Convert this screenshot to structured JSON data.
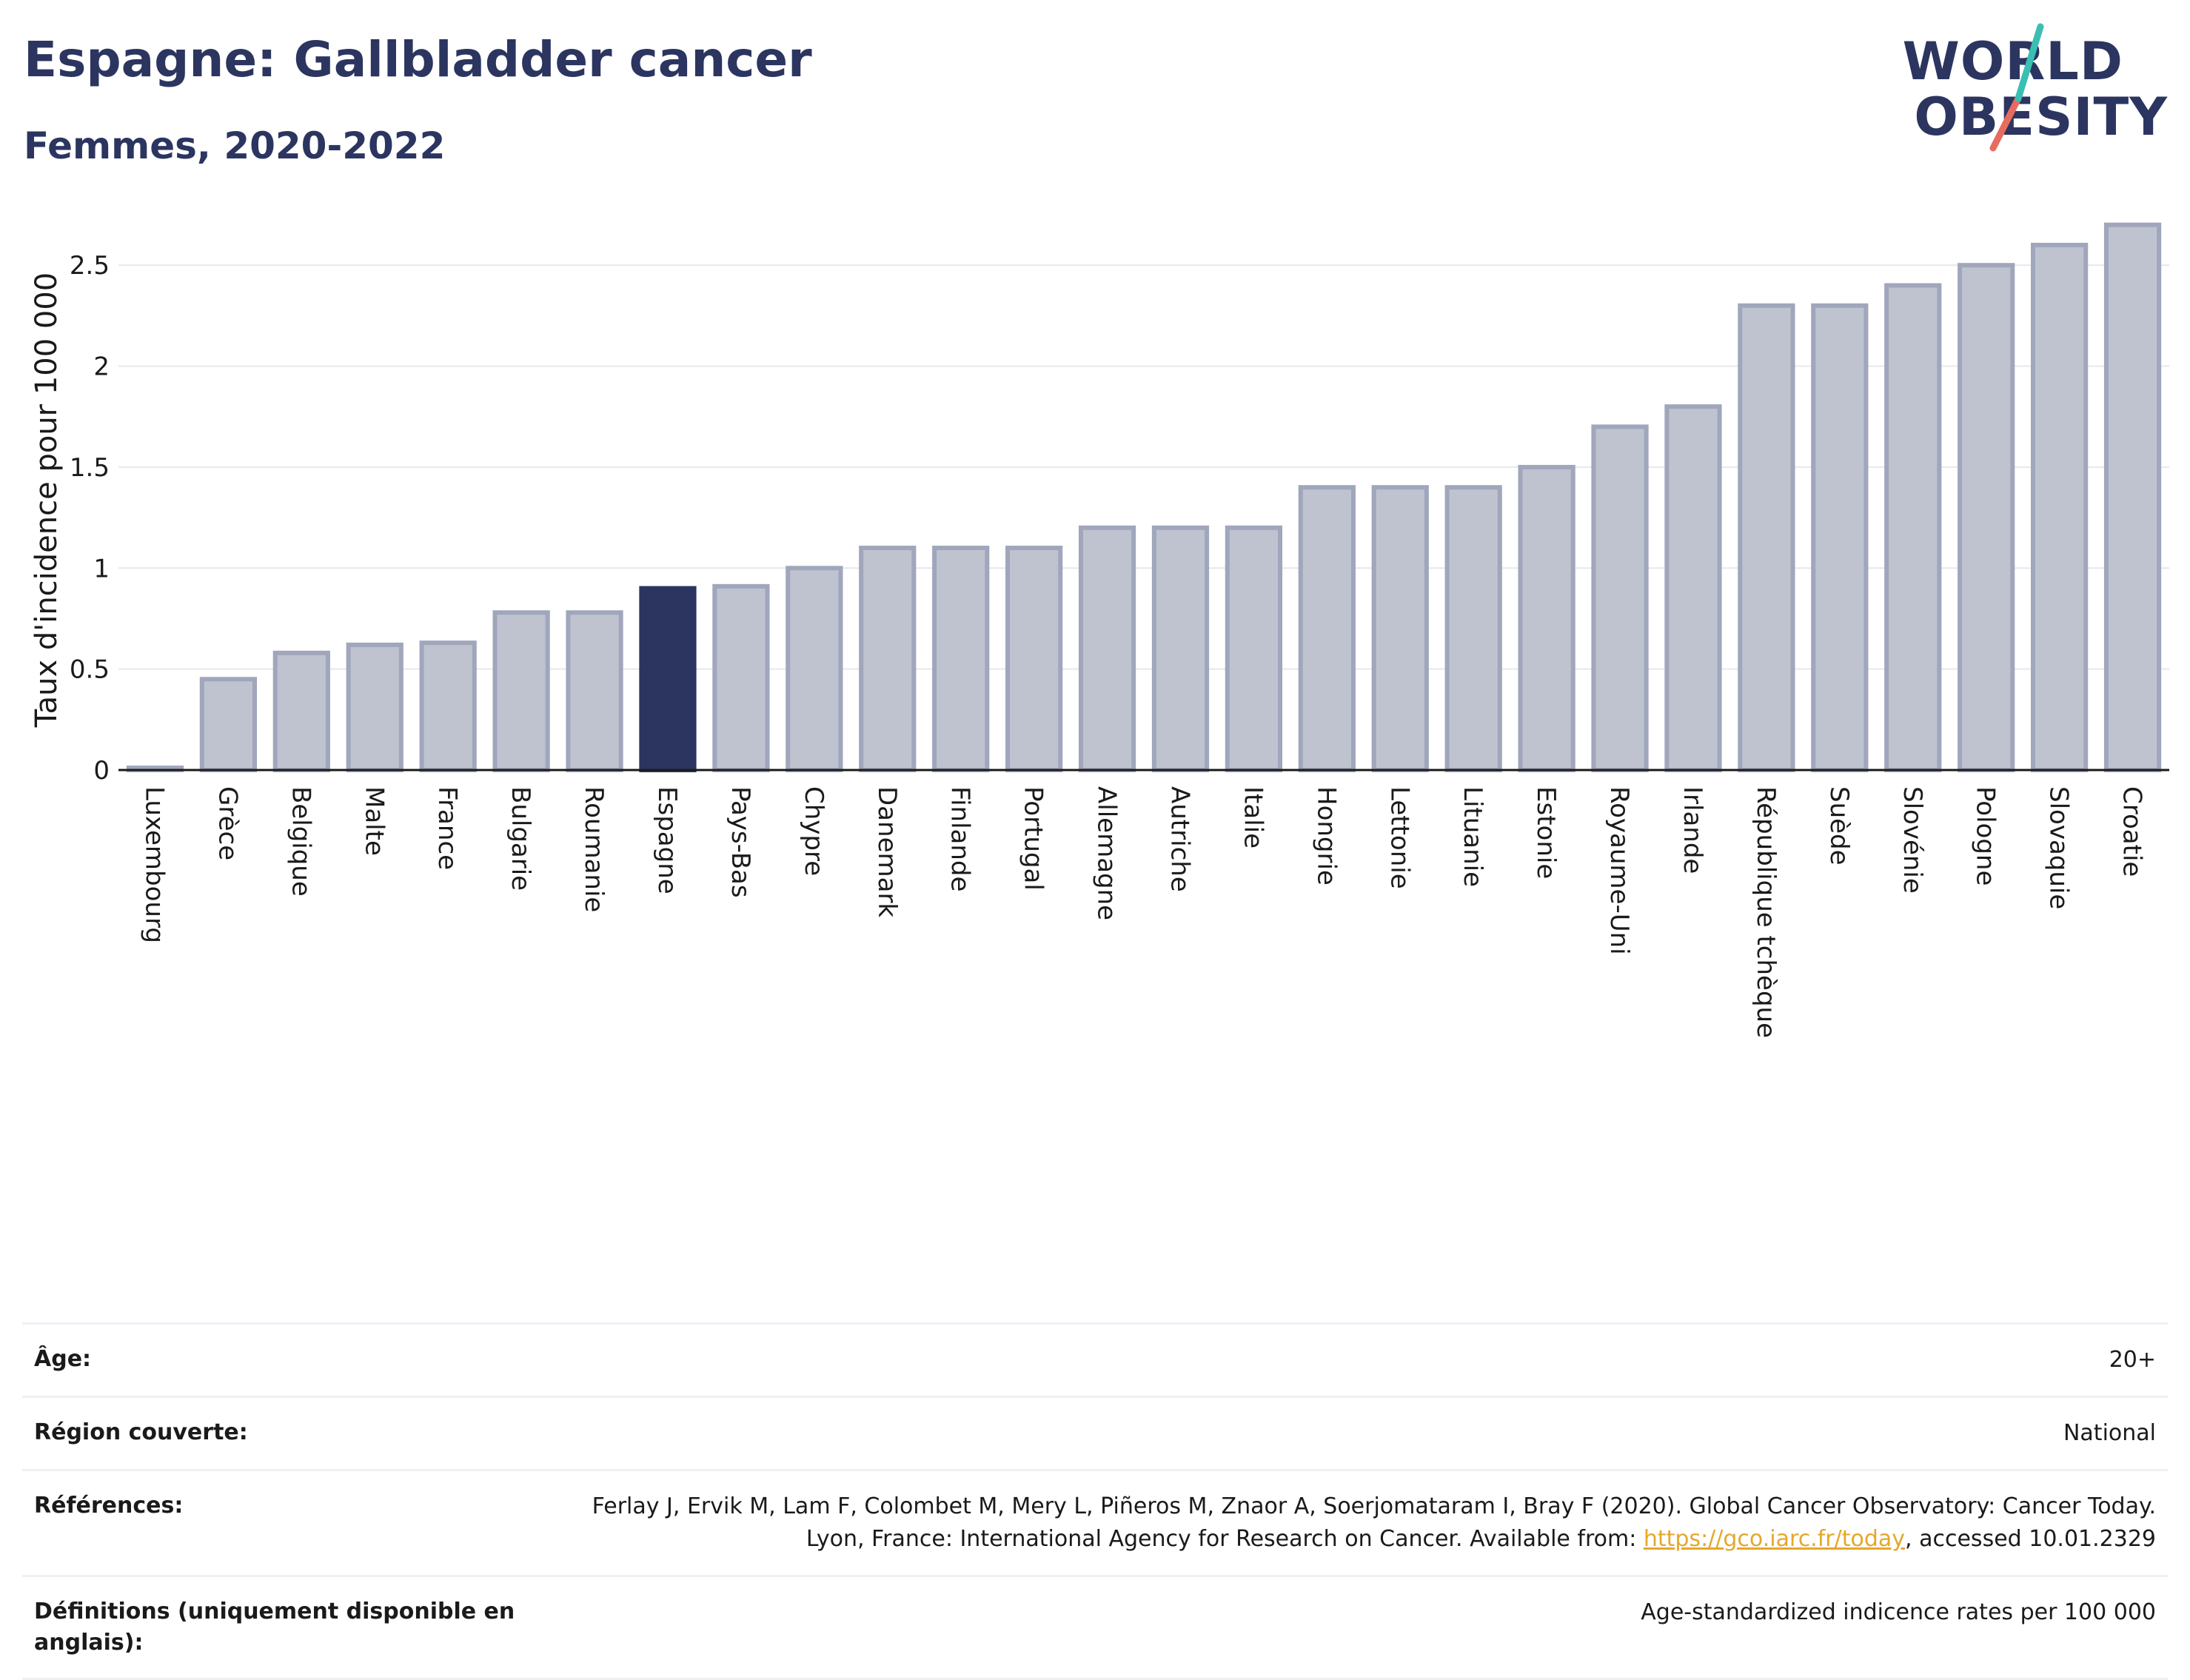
{
  "header": {
    "title": "Espagne: Gallbladder cancer",
    "subtitle": "Femmes, 2020-2022",
    "logo_line1": "WORLD",
    "logo_line2": "OBESITY"
  },
  "colors": {
    "bar": "#bfc3cf",
    "bar_border": "#a0a6bb",
    "highlight": "#2b3560",
    "logo_teal": "#3bbfb2",
    "logo_coral": "#e66c5f",
    "link": "#e5a82a"
  },
  "chart_data": {
    "type": "bar",
    "ylabel": "Taux d'incidence pour 100 000",
    "xlabel": "",
    "ylim": [
      0,
      2.75
    ],
    "yticks": [
      0,
      0.5,
      1,
      1.5,
      2,
      2.5
    ],
    "ytick_labels": [
      "0",
      "0.5",
      "1",
      "1.5",
      "2",
      "2.5"
    ],
    "grid": true,
    "highlight_category": "Espagne",
    "categories": [
      "Luxembourg",
      "Grèce",
      "Belgique",
      "Malte",
      "France",
      "Bulgarie",
      "Roumanie",
      "Espagne",
      "Pays-Bas",
      "Chypre",
      "Danemark",
      "Finlande",
      "Portugal",
      "Allemagne",
      "Autriche",
      "Italie",
      "Hongrie",
      "Lettonie",
      "Lituanie",
      "Estonie",
      "Royaume-Uni",
      "Irlande",
      "République tchèque",
      "Suède",
      "Slovénie",
      "Pologne",
      "Slovaquie",
      "Croatie"
    ],
    "values": [
      0.01,
      0.45,
      0.58,
      0.62,
      0.63,
      0.78,
      0.78,
      0.9,
      0.91,
      1.0,
      1.1,
      1.1,
      1.1,
      1.2,
      1.2,
      1.2,
      1.4,
      1.4,
      1.4,
      1.5,
      1.7,
      1.8,
      2.3,
      2.3,
      2.4,
      2.5,
      2.6,
      2.7
    ]
  },
  "info": {
    "age_label": "Âge:",
    "age_value": "20+",
    "region_label": "Région couverte:",
    "region_value": "National",
    "refs_label": "Références:",
    "refs_text_1": "Ferlay J, Ervik M, Lam F, Colombet M, Mery L, Piñeros M, Znaor A, Soerjomataram I, Bray F (2020). Global Cancer Observatory: Cancer Today. Lyon, France: International Agency for Research on Cancer. Available from: ",
    "refs_link": "https://gco.iarc.fr/today",
    "refs_text_2": ", accessed 10.01.2329",
    "defs_label": "Définitions (uniquement disponible en anglais):",
    "defs_value": "Age-standardized indicence rates per 100 000"
  }
}
